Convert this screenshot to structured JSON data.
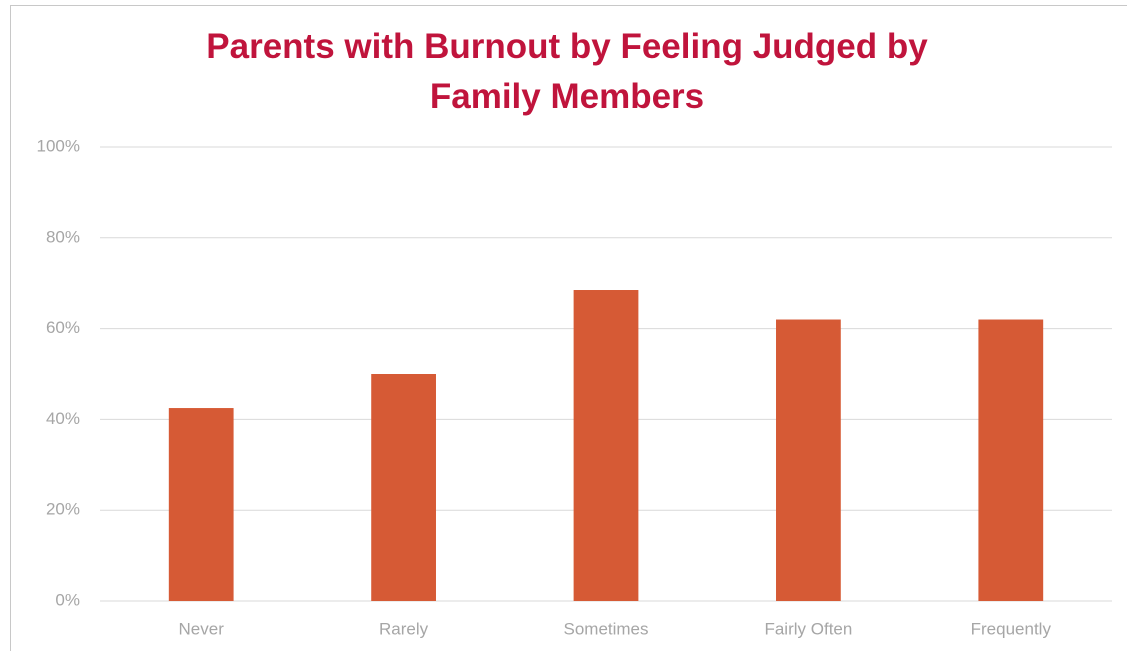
{
  "chart_data": {
    "type": "bar",
    "title": "Parents with Burnout by Feeling Judged by Family Members",
    "categories": [
      "Never",
      "Rarely",
      "Sometimes",
      "Fairly Often",
      "Frequently"
    ],
    "values": [
      42.5,
      50,
      68.5,
      62,
      62
    ],
    "color": "#d65a35",
    "ylim": [
      0,
      100
    ],
    "yticks": [
      {
        "value": 0,
        "label": "0%"
      },
      {
        "value": 20,
        "label": "20%"
      },
      {
        "value": 40,
        "label": "40%"
      },
      {
        "value": 60,
        "label": "60%"
      },
      {
        "value": 80,
        "label": "80%"
      },
      {
        "value": 100,
        "label": "100%"
      }
    ],
    "grid": true
  }
}
